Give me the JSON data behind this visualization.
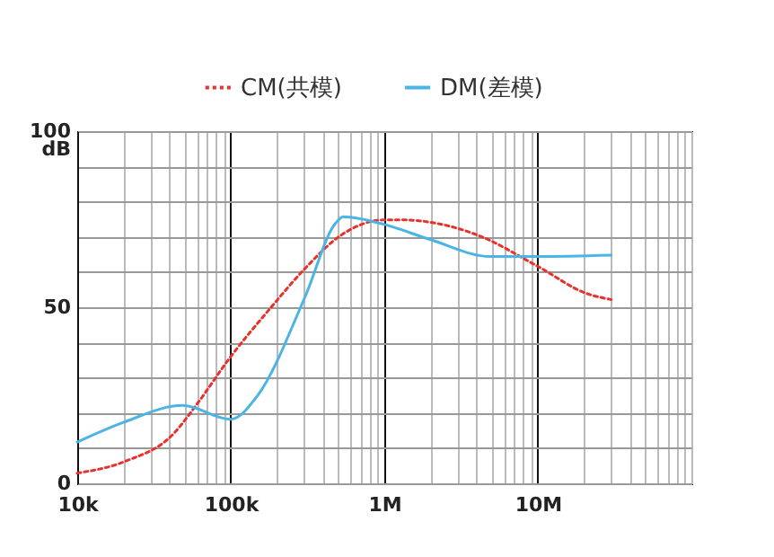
{
  "chart_data": {
    "type": "line",
    "ylabel": "dB",
    "log": "x",
    "grid": true,
    "legend": "top",
    "xlim": [
      10000,
      100000000
    ],
    "ylim": [
      0,
      100
    ],
    "xticks": [
      {
        "value": 10000,
        "label": "10k"
      },
      {
        "value": 20000,
        "label": null
      },
      {
        "value": 30000,
        "label": null
      },
      {
        "value": 40000,
        "label": null
      },
      {
        "value": 50000,
        "label": null
      },
      {
        "value": 60000,
        "label": null
      },
      {
        "value": 70000,
        "label": null
      },
      {
        "value": 80000,
        "label": null
      },
      {
        "value": 90000,
        "label": null
      },
      {
        "value": 100000,
        "label": "100k"
      },
      {
        "value": 200000,
        "label": null
      },
      {
        "value": 300000,
        "label": null
      },
      {
        "value": 400000,
        "label": null
      },
      {
        "value": 500000,
        "label": null
      },
      {
        "value": 600000,
        "label": null
      },
      {
        "value": 700000,
        "label": null
      },
      {
        "value": 800000,
        "label": null
      },
      {
        "value": 900000,
        "label": null
      },
      {
        "value": 1000000,
        "label": "1M"
      },
      {
        "value": 2000000,
        "label": null
      },
      {
        "value": 3000000,
        "label": null
      },
      {
        "value": 4000000,
        "label": null
      },
      {
        "value": 5000000,
        "label": null
      },
      {
        "value": 6000000,
        "label": null
      },
      {
        "value": 7000000,
        "label": null
      },
      {
        "value": 8000000,
        "label": null
      },
      {
        "value": 9000000,
        "label": null
      },
      {
        "value": 10000000,
        "label": "10M"
      },
      {
        "value": 20000000,
        "label": null
      },
      {
        "value": 30000000,
        "label": null
      },
      {
        "value": 40000000,
        "label": null
      },
      {
        "value": 50000000,
        "label": null
      },
      {
        "value": 60000000,
        "label": null
      },
      {
        "value": 70000000,
        "label": null
      },
      {
        "value": 80000000,
        "label": null
      },
      {
        "value": 90000000,
        "label": null
      },
      {
        "value": 100000000,
        "label": null
      }
    ],
    "yticks": [
      0,
      {
        "value": 10,
        "label": null
      },
      {
        "value": 20,
        "label": null
      },
      {
        "value": 30,
        "label": null
      },
      {
        "value": 40,
        "label": null
      },
      50,
      {
        "value": 60,
        "label": null
      },
      {
        "value": 70,
        "label": null
      },
      {
        "value": 80,
        "label": null
      },
      {
        "value": 90,
        "label": null
      },
      100
    ],
    "series": [
      {
        "name": "CM(共模)",
        "color": "#e8302c",
        "line_style": "dotted",
        "x": [
          10000,
          20700,
          42000,
          60000,
          100000,
          180000,
          300000,
          520000,
          1000000,
          1300000,
          4100000,
          10000000,
          20800000,
          30000000
        ],
        "values": [
          2.9,
          6.3,
          13.9,
          22.4,
          36,
          49.6,
          60.7,
          70.4,
          74.8,
          74.8,
          70.4,
          61.6,
          53.9,
          52.2
        ]
      },
      {
        "name": "DM(差模)",
        "color": "#4ab4e6",
        "line_style": "solid",
        "x": [
          10000,
          20000,
          48600,
          100000,
          150000,
          305000,
          480000,
          540000,
          1000000,
          2000000,
          4900000,
          10000000,
          30000000
        ],
        "values": [
          11.7,
          17.3,
          22.1,
          18.2,
          25,
          53,
          73.8,
          75.7,
          73.5,
          69.2,
          64.4,
          64.4,
          64.8
        ]
      }
    ]
  }
}
